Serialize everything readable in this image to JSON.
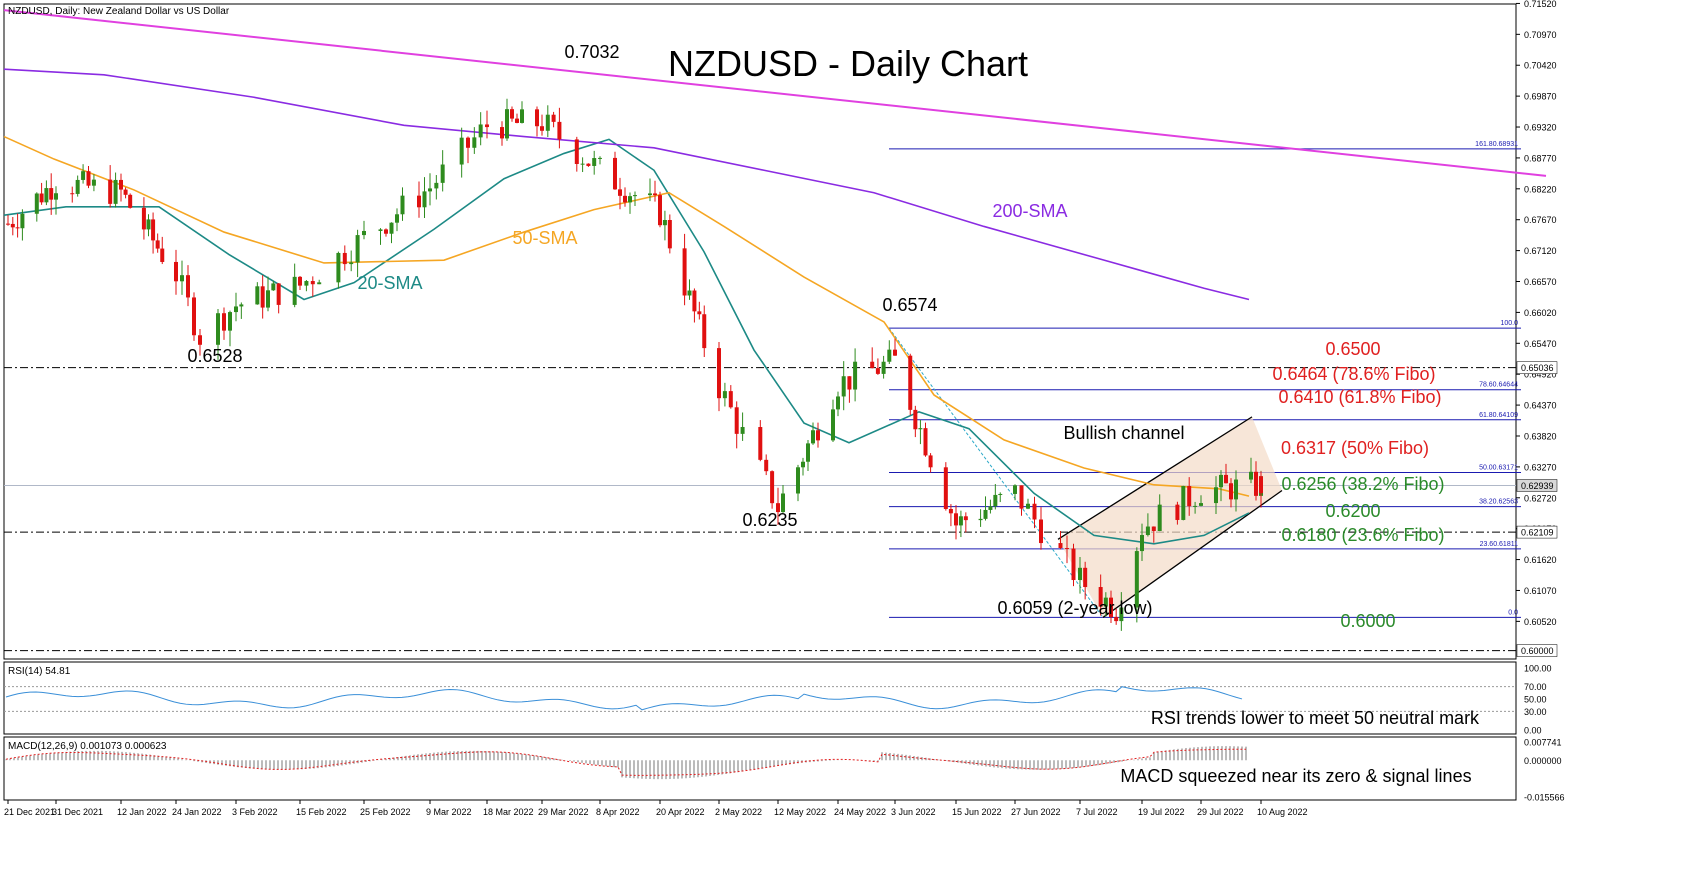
{
  "header": {
    "symbol_line": "NZDUSD, Daily:  New Zealand Dollar vs US Dollar",
    "title": "NZDUSD - Daily Chart"
  },
  "colors": {
    "bull": "#2e8b1e",
    "bear": "#e01010",
    "sma20": "#1d8a86",
    "sma50": "#f5a623",
    "sma200": "#8a2be2",
    "trend": "#e040e0",
    "fibo": "#1a1ab0",
    "fibo_red": "#e02020",
    "fibo_green": "#2a8a2a",
    "rsi": "#3a8fd8",
    "macd_signal": "#e02020",
    "macd_hist": "#777777"
  },
  "price_axis": {
    "min": 0.5985,
    "max": 0.7151,
    "ticks": [
      "0.71520",
      "0.70970",
      "0.70420",
      "0.69870",
      "0.69320",
      "0.68770",
      "0.68220",
      "0.67670",
      "0.67120",
      "0.66570",
      "0.66020",
      "0.65470",
      "0.64920",
      "0.64370",
      "0.63820",
      "0.63270",
      "0.62720",
      "0.62170",
      "0.61620",
      "0.61070",
      "0.60520"
    ],
    "current_price": "0.62939",
    "marked_levels": [
      "0.65036",
      "0.62109",
      "0.60000"
    ]
  },
  "x_axis": {
    "labels": [
      "21 Dec 2021",
      "31 Dec 2021",
      "12 Jan 2022",
      "24 Jan 2022",
      "3 Feb 2022",
      "15 Feb 2022",
      "25 Feb 2022",
      "9 Mar 2022",
      "18 Mar 2022",
      "29 Mar 2022",
      "8 Apr 2022",
      "20 Apr 2022",
      "2 May 2022",
      "12 May 2022",
      "24 May 2022",
      "3 Jun 2022",
      "15 Jun 2022",
      "27 Jun 2022",
      "7 Jul 2022",
      "19 Jul 2022",
      "29 Jul 2022",
      "10 Aug 2022"
    ]
  },
  "annotations": {
    "high_7032": "0.7032",
    "low_6528": "0.6528",
    "high_6574": "0.6574",
    "low_6235": "0.6235",
    "low_6059": "0.6059 (2-year low)",
    "sma20": "20-SMA",
    "sma50": "50-SMA",
    "sma200": "200-SMA",
    "channel": "Bullish channel",
    "lvl_6500": "0.6500",
    "lvl_6464": "0.6464 (78.6% Fibo)",
    "lvl_6410": "0.6410 (61.8% Fibo)",
    "lvl_6317": "0.6317 (50% Fibo)",
    "lvl_6256": "0.6256 (38.2% Fibo)",
    "lvl_6200": "0.6200",
    "lvl_6180": "0.6180 (23.6% Fibo)",
    "lvl_6000": "0.6000"
  },
  "fibo_tags": [
    "161.80.68931",
    "100.0",
    "78.60.64644",
    "61.80.64109",
    "50.00.63171",
    "38.20.62563",
    "23.60.61811",
    "0.0"
  ],
  "rsi": {
    "label": "RSI(14) 54.81",
    "ticks": [
      "100.00",
      "70.00",
      "50.00",
      "30.00",
      "0.00"
    ],
    "note": "RSI trends lower to meet 50 neutral mark"
  },
  "macd": {
    "label": "MACD(12,26,9) 0.001073 0.000623",
    "ticks": [
      "0.007741",
      "0.000000",
      "-0.015566"
    ],
    "note": "MACD squeezed near its zero & signal lines"
  },
  "chart_data": {
    "type": "candlestick",
    "title": "NZDUSD - Daily Chart",
    "key_points": [
      {
        "x": "22 Mar 2022 (approx.)",
        "y": 0.7032,
        "label": "0.7032"
      },
      {
        "x": "28 Jan 2022 (approx.)",
        "y": 0.6528,
        "label": "0.6528"
      },
      {
        "x": "3 Jun 2022",
        "y": 0.6574,
        "label": "0.6574"
      },
      {
        "x": "12 May 2022 (approx.)",
        "y": 0.6235,
        "label": "0.6235"
      },
      {
        "x": "14 Jul 2022",
        "y": 0.6059,
        "label": "0.6059 (2-year low)"
      }
    ],
    "close_path": [
      [
        "21 Dec 2021",
        0.676
      ],
      [
        "31 Dec 2021",
        0.6835
      ],
      [
        "12 Jan 2022",
        0.6815
      ],
      [
        "24 Jan 2022",
        0.667
      ],
      [
        "28 Jan 2022",
        0.656
      ],
      [
        "3 Feb 2022",
        0.6615
      ],
      [
        "15 Feb 2022",
        0.665
      ],
      [
        "25 Feb 2022",
        0.6735
      ],
      [
        "9 Mar 2022",
        0.6825
      ],
      [
        "18 Mar 2022",
        0.6935
      ],
      [
        "29 Mar 2022",
        0.694
      ],
      [
        "8 Apr 2022",
        0.6855
      ],
      [
        "20 Apr 2022",
        0.678
      ],
      [
        "2 May 2022",
        0.647
      ],
      [
        "12 May 2022",
        0.6255
      ],
      [
        "24 May 2022",
        0.6475
      ],
      [
        "3 Jun 2022",
        0.6515
      ],
      [
        "15 Jun 2022",
        0.6225
      ],
      [
        "27 Jun 2022",
        0.628
      ],
      [
        "7 Jul 2022",
        0.6125
      ],
      [
        "14 Jul 2022",
        0.6075
      ],
      [
        "19 Jul 2022",
        0.622
      ],
      [
        "29 Jul 2022",
        0.6285
      ],
      [
        "10 Aug 2022",
        0.6294
      ]
    ],
    "series": [
      {
        "name": "20-SMA",
        "values": [
          [
            0,
            0.6775
          ],
          [
            62,
            0.679
          ],
          [
            155,
            0.679
          ],
          [
            225,
            0.6705
          ],
          [
            300,
            0.6625
          ],
          [
            350,
            0.6655
          ],
          [
            430,
            0.675
          ],
          [
            500,
            0.684
          ],
          [
            560,
            0.6885
          ],
          [
            605,
            0.691
          ],
          [
            650,
            0.6855
          ],
          [
            700,
            0.671
          ],
          [
            750,
            0.6535
          ],
          [
            800,
            0.6405
          ],
          [
            845,
            0.637
          ],
          [
            915,
            0.6425
          ],
          [
            965,
            0.6395
          ],
          [
            1030,
            0.628
          ],
          [
            1090,
            0.6205
          ],
          [
            1150,
            0.619
          ],
          [
            1200,
            0.6205
          ],
          [
            1245,
            0.6245
          ]
        ]
      },
      {
        "name": "50-SMA",
        "values": [
          [
            0,
            0.6915
          ],
          [
            50,
            0.6875
          ],
          [
            130,
            0.682
          ],
          [
            220,
            0.6745
          ],
          [
            320,
            0.669
          ],
          [
            440,
            0.6695
          ],
          [
            520,
            0.6745
          ],
          [
            590,
            0.6785
          ],
          [
            665,
            0.6815
          ],
          [
            720,
            0.6755
          ],
          [
            800,
            0.6665
          ],
          [
            880,
            0.6585
          ],
          [
            930,
            0.6455
          ],
          [
            1000,
            0.6375
          ],
          [
            1080,
            0.6325
          ],
          [
            1150,
            0.6295
          ],
          [
            1215,
            0.6288
          ],
          [
            1245,
            0.6275
          ]
        ]
      },
      {
        "name": "200-SMA",
        "values": [
          [
            0,
            0.7035
          ],
          [
            100,
            0.7025
          ],
          [
            250,
            0.6985
          ],
          [
            400,
            0.6935
          ],
          [
            520,
            0.6915
          ],
          [
            650,
            0.6895
          ],
          [
            760,
            0.6855
          ],
          [
            870,
            0.6815
          ],
          [
            980,
            0.6755
          ],
          [
            1100,
            0.6695
          ],
          [
            1200,
            0.6645
          ],
          [
            1245,
            0.6625
          ]
        ]
      }
    ],
    "trendline": [
      [
        0,
        0.714
      ],
      [
        1546,
        0.6845
      ]
    ],
    "fibonacci": [
      {
        "level": "161.8",
        "price": 0.68931
      },
      {
        "level": "100.0",
        "price": 0.6574
      },
      {
        "level": "78.6",
        "price": 0.64644
      },
      {
        "level": "61.8",
        "price": 0.64109
      },
      {
        "level": "50.0",
        "price": 0.63171
      },
      {
        "level": "38.2",
        "price": 0.62563
      },
      {
        "level": "23.6",
        "price": 0.61811
      },
      {
        "level": "0.0",
        "price": 0.6059
      }
    ],
    "horizontal_levels": [
      0.65036,
      0.62109,
      0.6
    ],
    "rsi_last": 54.81,
    "macd_last": {
      "macd": 0.001073,
      "signal": 0.000623
    }
  }
}
